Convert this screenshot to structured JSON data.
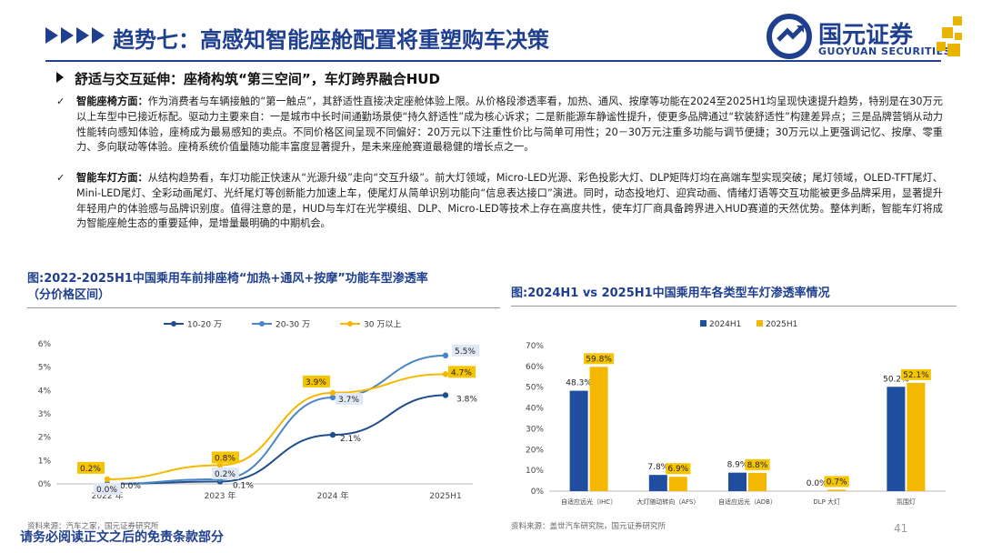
{
  "header": {
    "title": "趋势七：高感知智能座舱配置将重塑购车决策",
    "logo_cn": "国元证券",
    "logo_en": "GUOYUAN SECURITIES",
    "accent_color": "#1f3f8f",
    "logo_accent_color": "#e8b400"
  },
  "subheading": "舒适与交互延伸：座椅构筑“第三空间”，车灯跨界融合HUD",
  "bullets": [
    {
      "mark": "✓",
      "lead": "智能座椅方面：",
      "body": "作为消费者与车辆接触的“第一触点”，其舒适性直接决定座舱体验上限。从价格段渗透率看，加热、通风、按摩等功能在2024至2025H1均呈现快速提升趋势，特别是在30万元以上车型中已接近标配。驱动力主要来自：一是城市中长时间通勤场景使“持久舒适性”成为核心诉求；二是新能源车静谧性提升，使更多品牌通过“软装舒适性”构建差异点；三是品牌营销从动力性能转向感知体验，座椅成为最易感知的卖点。不同价格区间呈现不同偏好：20万元以下注重性价比与简单可用性；20－30万元注重多功能与调节便捷；30万元以上更强调记忆、按摩、零重力、多向联动等体验。座椅系统价值量随功能丰富度显著提升，是未来座舱赛道最稳健的增长点之一。"
    },
    {
      "mark": "✓",
      "lead": "智能车灯方面：",
      "body": "从结构趋势看，车灯功能正快速从“光源升级”走向“交互升级”。前大灯领域，Micro-LED光源、彩色投影大灯、DLP矩阵灯均在高端车型实现突破；尾灯领域，OLED-TFT尾灯、Mini-LED尾灯、全彩动画尾灯、光纤尾灯等创新能力加速上车，使尾灯从简单识别功能向“信息表达接口”演进。同时，动态投地灯、迎宾动画、情绪灯语等交互功能被更多品牌采用，显著提升年轻用户的体验感与品牌识别度。值得注意的是，HUD与车灯在光学模组、DLP、Micro-LED等技术上存在高度共性，使车灯厂商具备跨界进入HUD赛道的天然优势。整体判断，智能车灯将成为智能座舱生态的重要延伸，是增量最明确的中期机会。"
    }
  ],
  "footer": "请务必阅读正文之后的免责条款部分",
  "page_number": "41",
  "chart_data": [
    {
      "type": "line",
      "title_line1": "图:2022-2025H1中国乘用车前排座椅“加热+通风+按摩”功能车型渗透率",
      "title_line2": "（分价格区间）",
      "x": [
        "2022 年",
        "2023 年",
        "2024 年",
        "2025H1"
      ],
      "y_ticks": [
        "0%",
        "1%",
        "2%",
        "3%",
        "4%",
        "5%",
        "6%"
      ],
      "ylim": [
        0,
        6
      ],
      "series": [
        {
          "name": "10-20 万",
          "color": "#1f4e8c",
          "values": [
            0.0,
            0.1,
            2.1,
            3.8
          ],
          "labels": [
            "0.0%",
            "0.1%",
            "2.1%",
            "3.8%"
          ]
        },
        {
          "name": "20-30 万",
          "color": "#4a86c5",
          "values": [
            0.0,
            0.2,
            3.7,
            5.5
          ],
          "labels": [
            "0.0%",
            "0.2%",
            "3.7%",
            "5.5%"
          ]
        },
        {
          "name": "30 万以上",
          "color": "#f5b800",
          "values": [
            0.2,
            0.8,
            3.9,
            4.7
          ],
          "labels": [
            "0.2%",
            "0.8%",
            "3.9%",
            "4.7%"
          ]
        }
      ],
      "source": "资料来源：汽车之家，国元证券研究所"
    },
    {
      "type": "bar",
      "title": "图:2024H1 vs 2025H1中国乘用车各类型车灯渗透率情况",
      "categories": [
        "自适应远光（IHC）",
        "大灯随动转向（AFS）",
        "自适应远光（ADB）",
        "DLP 大灯",
        "氛围灯"
      ],
      "y_ticks": [
        "0%",
        "10%",
        "20%",
        "30%",
        "40%",
        "50%",
        "60%",
        "70%"
      ],
      "ylim": [
        0,
        70
      ],
      "series": [
        {
          "name": "2024H1",
          "color": "#1f4ea0",
          "values": [
            48.3,
            7.8,
            8.9,
            0.0,
            50.2
          ],
          "labels": [
            "48.3%",
            "7.8%",
            "8.9%",
            "0.0%",
            "50.2%"
          ]
        },
        {
          "name": "2025H1",
          "color": "#f5b800",
          "values": [
            59.8,
            6.9,
            8.8,
            0.7,
            52.1
          ],
          "labels": [
            "59.8%",
            "6.9%",
            "8.8%",
            "0.7%",
            "52.1%"
          ]
        }
      ],
      "source": "资料来源：盖世汽车研究院，国元证券研究所"
    }
  ]
}
